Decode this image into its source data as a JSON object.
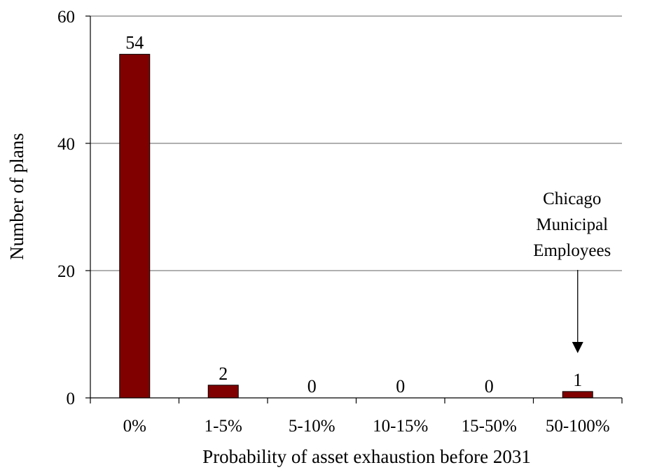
{
  "chart_data": {
    "type": "bar",
    "categories": [
      "0%",
      "1-5%",
      "5-10%",
      "10-15%",
      "15-50%",
      "50-100%"
    ],
    "values": [
      54,
      2,
      0,
      0,
      0,
      1
    ],
    "data_labels": [
      "54",
      "2",
      "0",
      "0",
      "0",
      "1"
    ],
    "title": "",
    "xlabel": "Probability of asset exhaustion before 2031",
    "ylabel": "Number of plans",
    "ylim": [
      0,
      60
    ],
    "yticks": [
      0,
      20,
      40,
      60
    ],
    "grid": true,
    "legend": "none",
    "colors": {
      "bar": "#800000",
      "bar_edge": "#000000",
      "grid": "#808080",
      "axis": "#000000"
    },
    "annotation": {
      "lines": [
        "Chicago",
        "Municipal",
        "Employees"
      ],
      "category": "50-100%",
      "arrow": "down"
    }
  }
}
